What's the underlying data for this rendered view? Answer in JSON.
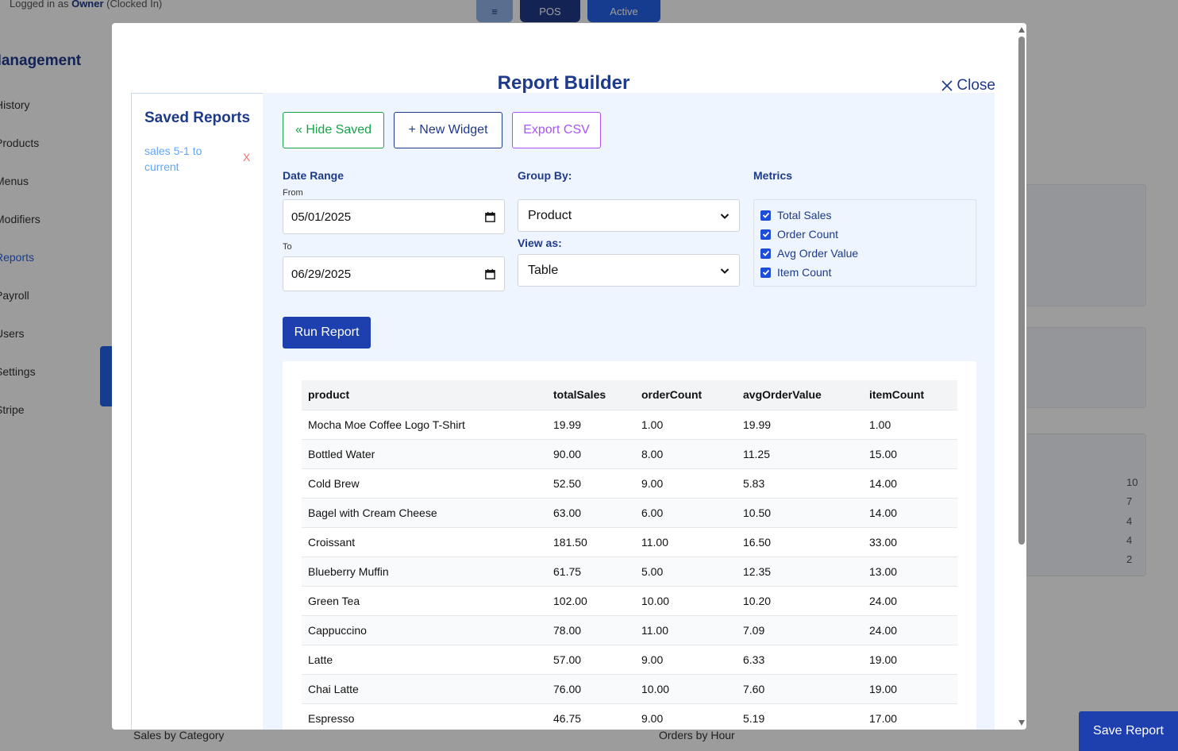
{
  "background": {
    "logged_in_prefix": "Logged in as",
    "user_name": "Owner",
    "user_suffix": "(Clocked In)",
    "top_buttons": [
      "≡",
      "POS",
      "Active"
    ],
    "sidebar_heading": "Management",
    "sidebar_items": [
      "History",
      "Products",
      "Menus",
      "Modifiers",
      "Reports",
      "Payroll",
      "Users",
      "Settings",
      "Stripe"
    ],
    "bottom_labels": [
      "Sales by Category",
      "Orders by Hour"
    ],
    "side_numbers": [
      "10",
      "7",
      "4",
      "4",
      "2"
    ]
  },
  "modal": {
    "title": "Report Builder",
    "close_label": "Close"
  },
  "saved_reports": {
    "title": "Saved Reports",
    "items": [
      {
        "label": "sales 5-1 to current",
        "delete_label": "X"
      }
    ]
  },
  "toolbar": {
    "hide_saved_label": "« Hide Saved",
    "new_widget_label": "+ New Widget",
    "export_csv_label": "Export CSV"
  },
  "date_range": {
    "label": "Date Range",
    "from_label": "From",
    "from_value": "05/01/2025",
    "to_label": "To",
    "to_value": "06/29/2025"
  },
  "group_by": {
    "label": "Group By:",
    "value": "Product"
  },
  "view_as": {
    "label": "View as:",
    "value": "Table"
  },
  "metrics": {
    "label": "Metrics",
    "items": [
      {
        "label": "Total Sales",
        "checked": true
      },
      {
        "label": "Order Count",
        "checked": true
      },
      {
        "label": "Avg Order Value",
        "checked": true
      },
      {
        "label": "Item Count",
        "checked": true
      }
    ]
  },
  "run_report_label": "Run Report",
  "save_report_label": "Save Report",
  "table": {
    "columns": [
      "product",
      "totalSales",
      "orderCount",
      "avgOrderValue",
      "itemCount"
    ],
    "rows": [
      [
        "Mocha Moe Coffee Logo T-Shirt",
        "19.99",
        "1.00",
        "19.99",
        "1.00"
      ],
      [
        "Bottled Water",
        "90.00",
        "8.00",
        "11.25",
        "15.00"
      ],
      [
        "Cold Brew",
        "52.50",
        "9.00",
        "5.83",
        "14.00"
      ],
      [
        "Bagel with Cream Cheese",
        "63.00",
        "6.00",
        "10.50",
        "14.00"
      ],
      [
        "Croissant",
        "181.50",
        "11.00",
        "16.50",
        "33.00"
      ],
      [
        "Blueberry Muffin",
        "61.75",
        "5.00",
        "12.35",
        "13.00"
      ],
      [
        "Green Tea",
        "102.00",
        "10.00",
        "10.20",
        "24.00"
      ],
      [
        "Cappuccino",
        "78.00",
        "11.00",
        "7.09",
        "24.00"
      ],
      [
        "Latte",
        "57.00",
        "9.00",
        "6.33",
        "19.00"
      ],
      [
        "Chai Latte",
        "76.00",
        "10.00",
        "7.60",
        "19.00"
      ],
      [
        "Espresso",
        "46.75",
        "9.00",
        "5.19",
        "17.00"
      ]
    ]
  },
  "colors": {
    "brand_blue": "#1e3a8a",
    "primary_button": "#1e40af",
    "hide_saved_green": "#16a34a",
    "export_purple": "#a855f7",
    "delete_red": "#f87171",
    "saved_link": "#60a5fa",
    "panel_bg": "#eef5fe"
  }
}
